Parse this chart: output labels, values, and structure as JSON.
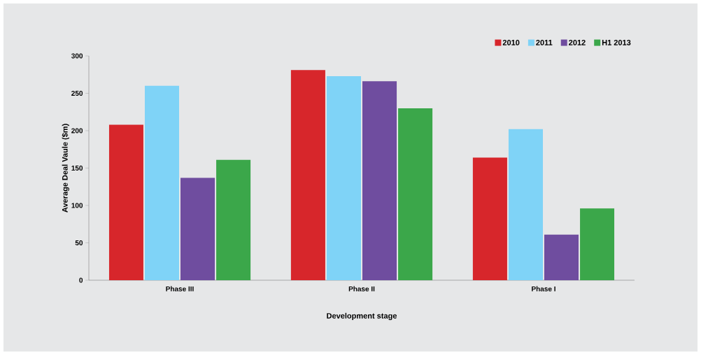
{
  "chart_data": {
    "type": "bar",
    "xlabel": "Development stage",
    "ylabel": "Average Deal Vaule ($m)",
    "categories": [
      "Phase III",
      "Phase II",
      "Phase I"
    ],
    "series": [
      {
        "name": "2010",
        "color": "#d7262b",
        "values": [
          208,
          281,
          164
        ]
      },
      {
        "name": "2011",
        "color": "#7fd3f7",
        "values": [
          260,
          273,
          202
        ]
      },
      {
        "name": "2012",
        "color": "#6f4d9f",
        "values": [
          137,
          266,
          61
        ]
      },
      {
        "name": "H1 2013",
        "color": "#3ba74a",
        "values": [
          161,
          230,
          96
        ]
      }
    ],
    "ylim": [
      0,
      300
    ],
    "yticks": [
      0,
      50,
      100,
      150,
      200,
      250,
      300
    ],
    "grid": false,
    "legend": "top right"
  }
}
